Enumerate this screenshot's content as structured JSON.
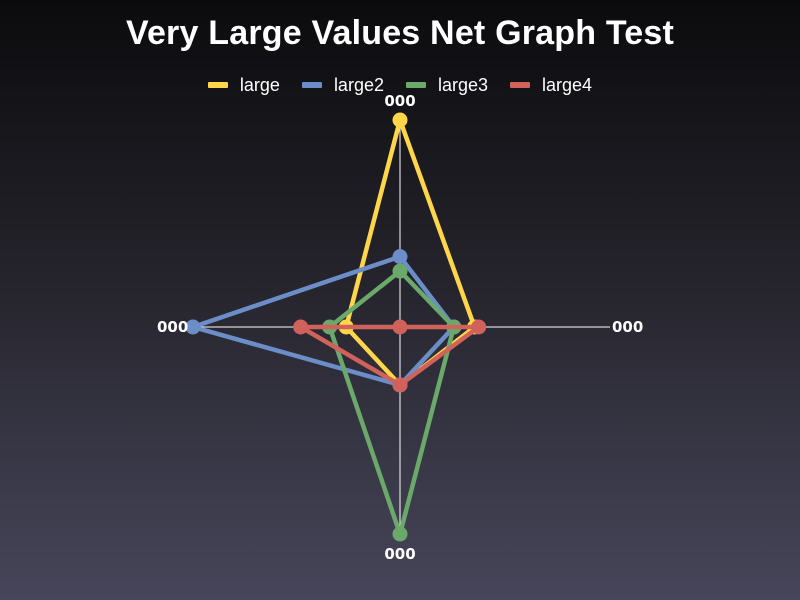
{
  "chart_data": {
    "type": "radar",
    "title": "Very Large Values Net Graph Test",
    "axes": [
      "000",
      "000",
      "000",
      "000"
    ],
    "max": 100,
    "series": [
      {
        "name": "large",
        "color": "#ffd54a",
        "values": [
          100,
          36,
          28,
          26
        ]
      },
      {
        "name": "large2",
        "color": "#6b8ec9",
        "values": [
          34,
          26,
          28,
          100
        ]
      },
      {
        "name": "large3",
        "color": "#6aa96a",
        "values": [
          27,
          26,
          100,
          34
        ]
      },
      {
        "name": "large4",
        "color": "#d0625b",
        "values": [
          0,
          38,
          28,
          48
        ]
      }
    ],
    "legend_position": "top-center"
  }
}
